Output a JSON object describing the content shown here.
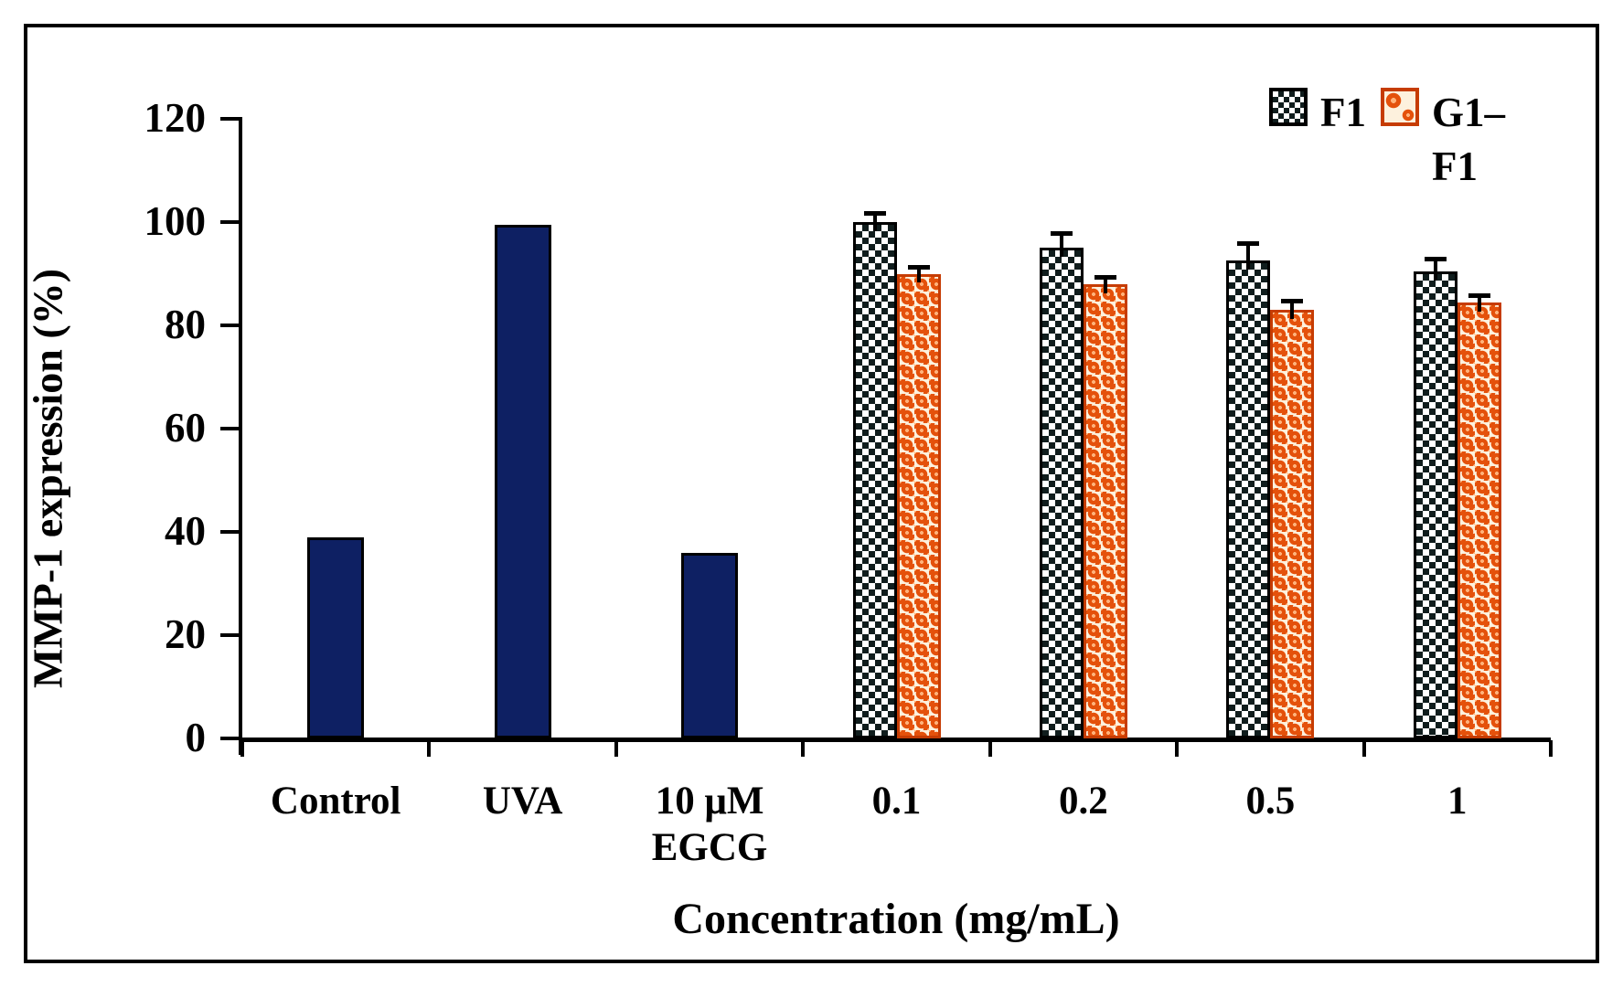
{
  "figure": {
    "y_axis": {
      "title": "MMP-1 expression (%)",
      "tick_labels": [
        "0",
        "20",
        "40",
        "60",
        "80",
        "100",
        "120"
      ]
    },
    "x_axis": {
      "title": "Concentration (mg/mL)",
      "category_labels": [
        "Control",
        "UVA",
        "10 μM\nEGCG",
        "0.1",
        "0.2",
        "0.5",
        "1"
      ]
    },
    "legend": {
      "items": [
        {
          "label": "F1",
          "swatch": "checker-pattern"
        },
        {
          "label": "G1–F1",
          "swatch": "orange-spheres-pattern"
        }
      ]
    }
  },
  "chart_data": {
    "type": "bar",
    "title": "",
    "xlabel": "Concentration (mg/mL)",
    "ylabel": "MMP-1 expression (%)",
    "ylim": [
      0,
      120
    ],
    "yticks": [
      0,
      20,
      40,
      60,
      80,
      100,
      120
    ],
    "grid": false,
    "legend_position": "top-right",
    "categories": [
      "Control",
      "UVA",
      "10 μM\nEGCG",
      "0.1",
      "0.2",
      "0.5",
      "1"
    ],
    "single_bars": [
      {
        "category": "Control",
        "value": 39
      },
      {
        "category": "UVA",
        "value": 99.5
      },
      {
        "category": "10 μM EGCG",
        "value": 36
      }
    ],
    "series": [
      {
        "name": "F1",
        "pattern": "checker",
        "categories": [
          "0.1",
          "0.2",
          "0.5",
          "1"
        ],
        "values": [
          100,
          95,
          92.5,
          90.5
        ],
        "errors": [
          1.5,
          2.5,
          3,
          2
        ]
      },
      {
        "name": "G1–F1",
        "pattern": "orange-spheres",
        "categories": [
          "0.1",
          "0.2",
          "0.5",
          "1"
        ],
        "values": [
          90,
          88,
          83,
          84.5
        ],
        "errors": [
          1,
          1,
          1.5,
          1
        ]
      }
    ],
    "colors": {
      "solid_bar": "#0e2063",
      "checker_dark": "#101d1d",
      "sphere_orange": "#e4510b",
      "sphere_border": "#c63c03",
      "axis": "#000000"
    }
  }
}
